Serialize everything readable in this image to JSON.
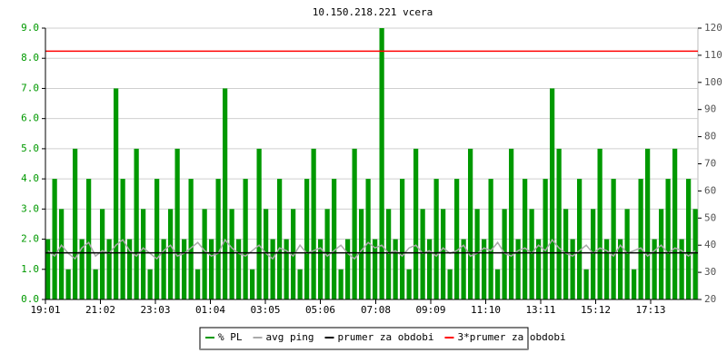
{
  "chart_data": {
    "type": "combo",
    "title": "10.150.218.221 vcera",
    "xlim": [
      0,
      1440
    ],
    "xticks": [
      {
        "value": 0,
        "label": "19:01"
      },
      {
        "value": 121,
        "label": "21:02"
      },
      {
        "value": 242,
        "label": "23:03"
      },
      {
        "value": 363,
        "label": "01:04"
      },
      {
        "value": 484,
        "label": "03:05"
      },
      {
        "value": 605,
        "label": "05:06"
      },
      {
        "value": 727,
        "label": "07:08"
      },
      {
        "value": 848,
        "label": "09:09"
      },
      {
        "value": 969,
        "label": "11:10"
      },
      {
        "value": 1090,
        "label": "13:11"
      },
      {
        "value": 1211,
        "label": "15:12"
      },
      {
        "value": 1332,
        "label": "17:13"
      }
    ],
    "ylim": [
      0,
      9
    ],
    "yticks": [
      {
        "value": 0,
        "label": "0.0"
      },
      {
        "value": 1,
        "label": "1.0"
      },
      {
        "value": 2,
        "label": "2.0"
      },
      {
        "value": 3,
        "label": "3.0"
      },
      {
        "value": 4,
        "label": "4.0"
      },
      {
        "value": 5,
        "label": "5.0"
      },
      {
        "value": 6,
        "label": "6.0"
      },
      {
        "value": 7,
        "label": "7.0"
      },
      {
        "value": 8,
        "label": "8.0"
      },
      {
        "value": 9,
        "label": "9.0"
      }
    ],
    "y2lim": [
      20,
      120
    ],
    "y2ticks": [
      20,
      30,
      40,
      50,
      60,
      70,
      80,
      90,
      100,
      110,
      120
    ],
    "grid": true,
    "x": [
      0,
      15,
      30,
      45,
      60,
      75,
      90,
      105,
      120,
      135,
      150,
      165,
      180,
      195,
      210,
      225,
      240,
      255,
      270,
      285,
      300,
      315,
      330,
      345,
      360,
      375,
      390,
      405,
      420,
      435,
      450,
      465,
      480,
      495,
      510,
      525,
      540,
      555,
      570,
      585,
      600,
      615,
      630,
      645,
      660,
      675,
      690,
      705,
      720,
      735,
      750,
      765,
      780,
      795,
      810,
      825,
      840,
      855,
      870,
      885,
      900,
      915,
      930,
      945,
      960,
      975,
      990,
      1005,
      1020,
      1035,
      1050,
      1065,
      1080,
      1095,
      1110,
      1125,
      1140,
      1155,
      1170,
      1185,
      1200,
      1215,
      1230,
      1245,
      1260,
      1275,
      1290,
      1305,
      1320,
      1335,
      1350,
      1365,
      1380,
      1395,
      1410,
      1425
    ],
    "series": [
      {
        "name": "% PL",
        "type": "bar",
        "color": "#009900",
        "values": [
          2,
          4,
          3,
          1,
          5,
          2,
          4,
          1,
          3,
          2,
          7,
          4,
          2,
          5,
          3,
          1,
          4,
          2,
          3,
          5,
          2,
          4,
          1,
          3,
          2,
          4,
          7,
          3,
          2,
          4,
          1,
          5,
          3,
          2,
          4,
          2,
          3,
          1,
          4,
          5,
          2,
          3,
          4,
          1,
          2,
          5,
          3,
          4,
          2,
          9,
          3,
          2,
          4,
          1,
          5,
          3,
          2,
          4,
          3,
          1,
          4,
          2,
          5,
          3,
          2,
          4,
          1,
          3,
          5,
          2,
          4,
          3,
          2,
          4,
          7,
          5,
          3,
          2,
          4,
          1,
          3,
          5,
          2,
          4,
          2,
          3,
          1,
          4,
          5,
          2,
          3,
          4,
          5,
          2,
          4,
          3
        ]
      },
      {
        "name": "avg ping",
        "type": "line",
        "axis": "y2",
        "color": "#aaaaaa",
        "values": [
          38,
          36,
          40,
          37,
          35,
          39,
          41,
          36,
          38,
          37,
          40,
          42,
          38,
          36,
          39,
          37,
          35,
          38,
          40,
          36,
          37,
          39,
          41,
          38,
          36,
          37,
          42,
          39,
          37,
          36,
          38,
          40,
          37,
          35,
          39,
          38,
          36,
          40,
          37,
          38,
          39,
          36,
          38,
          40,
          37,
          35,
          38,
          41,
          39,
          40,
          37,
          38,
          36,
          39,
          40,
          37,
          38,
          36,
          39,
          37,
          38,
          40,
          36,
          37,
          39,
          38,
          41,
          37,
          36,
          38,
          39,
          37,
          40,
          38,
          42,
          39,
          37,
          36,
          38,
          40,
          37,
          39,
          38,
          36,
          40,
          37,
          38,
          39,
          36,
          38,
          40,
          37,
          39,
          38,
          36,
          38
        ]
      },
      {
        "name": "prumer za obdobi",
        "type": "hline",
        "axis": "y2",
        "color": "#000000",
        "value": 37.2
      },
      {
        "name": "3*prumer za obdobi",
        "type": "hline",
        "axis": "y2",
        "color": "#ff0000",
        "value": 111.5
      }
    ]
  }
}
